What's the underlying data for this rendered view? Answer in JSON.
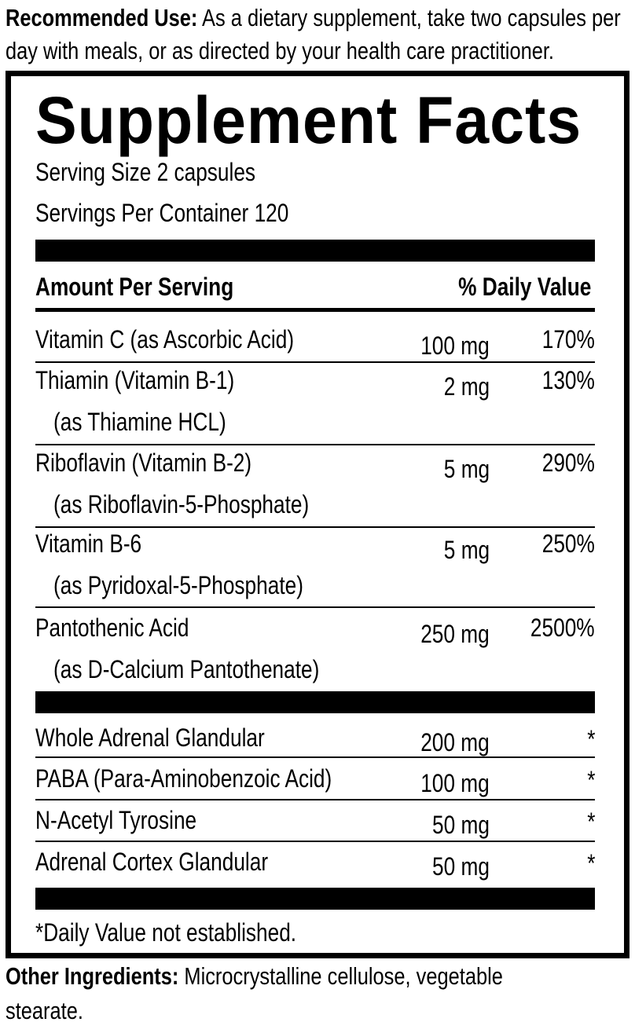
{
  "recommended": {
    "label": "Recommended Use:",
    "text": " As a dietary supplement, take two capsules per",
    "line2": "day with meals, or as directed by your health care practitioner."
  },
  "title": "Supplement Facts",
  "serving_size": "Serving Size 2 capsules",
  "servings_per_container": "Servings Per Container 120",
  "header": {
    "amount": "Amount Per Serving",
    "dv": "% Daily Value"
  },
  "vitamins": [
    {
      "name": "Vitamin C (as Ascorbic Acid)",
      "sub": "",
      "amount": "100 mg",
      "dv": "170%"
    },
    {
      "name": "Thiamin (Vitamin B-1)",
      "sub": "(as Thiamine HCL)",
      "amount": "2 mg",
      "dv": "130%"
    },
    {
      "name": "Riboflavin (Vitamin B-2)",
      "sub": "(as Riboflavin-5-Phosphate)",
      "amount": "5 mg",
      "dv": "290%"
    },
    {
      "name": "Vitamin B-6",
      "sub": "(as Pyridoxal-5-Phosphate)",
      "amount": "5 mg",
      "dv": "250%"
    },
    {
      "name": "Pantothenic Acid",
      "sub": "(as D-Calcium Pantothenate)",
      "amount": "250 mg",
      "dv": "2500%"
    }
  ],
  "others": [
    {
      "name": "Whole Adrenal Glandular",
      "amount": "200 mg",
      "dv": "*"
    },
    {
      "name": "PABA (Para-Aminobenzoic Acid)",
      "amount": "100 mg",
      "dv": "*"
    },
    {
      "name": "N-Acetyl Tyrosine",
      "amount": "50 mg",
      "dv": "*"
    },
    {
      "name": "Adrenal Cortex Glandular",
      "amount": "50 mg",
      "dv": "*"
    }
  ],
  "footnote": "*Daily Value not established.",
  "other_ingredients": {
    "label": "Other Ingredients:",
    "text": " Microcrystalline cellulose, vegetable",
    "line2": "stearate."
  }
}
